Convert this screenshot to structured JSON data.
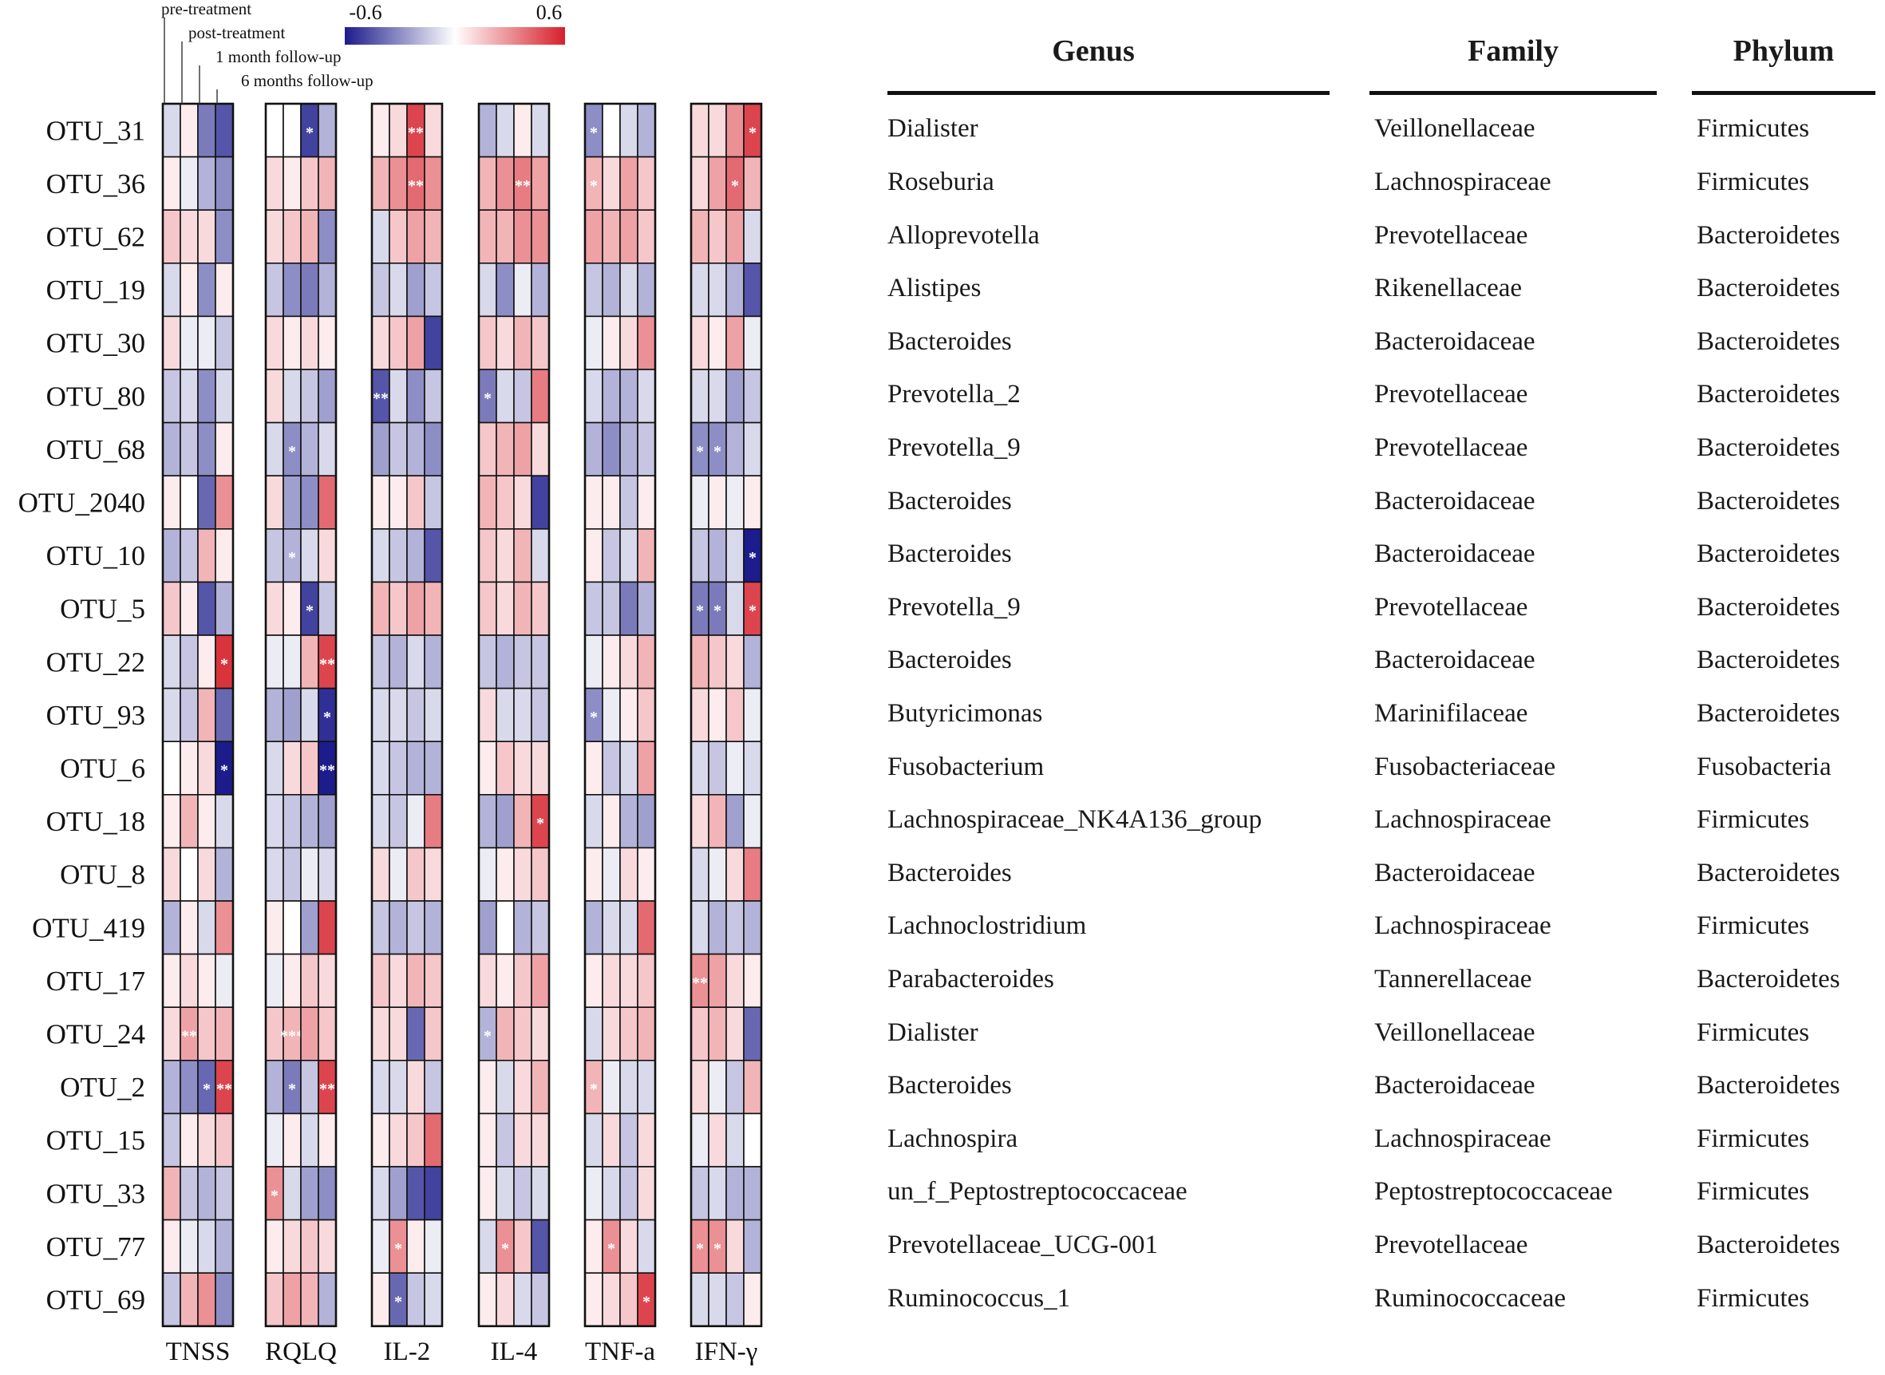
{
  "chart_data": {
    "type": "heatmap",
    "legend": {
      "min_label": "-0.6",
      "max_label": "0.6",
      "vmin": -0.6,
      "vmax": 0.6,
      "colors": {
        "low": "#1c1c8c",
        "mid": "#ffffff",
        "high": "#d6202a"
      }
    },
    "timepoint_labels": [
      "pre-treatment",
      "post-treatment",
      "1 month follow-up",
      "6 months follow-up"
    ],
    "groups": [
      "TNSS",
      "RQLQ",
      "IL-2",
      "IL-4",
      "TNF-a",
      "IFN-γ"
    ],
    "rows": [
      "OTU_31",
      "OTU_36",
      "OTU_62",
      "OTU_19",
      "OTU_30",
      "OTU_80",
      "OTU_68",
      "OTU_2040",
      "OTU_10",
      "OTU_5",
      "OTU_22",
      "OTU_93",
      "OTU_6",
      "OTU_18",
      "OTU_8",
      "OTU_419",
      "OTU_17",
      "OTU_24",
      "OTU_2",
      "OTU_15",
      "OTU_33",
      "OTU_77",
      "OTU_69"
    ],
    "values": [
      [
        -0.1,
        0.05,
        -0.35,
        -0.45,
        0.0,
        0.0,
        -0.5,
        -0.2,
        0.05,
        0.1,
        0.5,
        0.1,
        -0.2,
        -0.1,
        0.05,
        -0.1,
        -0.3,
        0.0,
        -0.1,
        -0.2,
        0.1,
        0.1,
        0.3,
        0.5
      ],
      [
        0.05,
        -0.05,
        -0.2,
        -0.3,
        0.1,
        0.05,
        0.15,
        0.2,
        0.2,
        0.3,
        0.4,
        0.3,
        0.2,
        0.3,
        0.35,
        0.25,
        0.2,
        0.1,
        0.25,
        0.15,
        0.1,
        0.25,
        0.4,
        0.2
      ],
      [
        0.15,
        0.1,
        0.1,
        -0.3,
        0.1,
        0.15,
        0.2,
        -0.3,
        -0.1,
        0.15,
        0.25,
        0.2,
        0.2,
        0.2,
        0.3,
        0.3,
        0.25,
        0.2,
        0.25,
        0.15,
        0.2,
        0.15,
        0.25,
        -0.1
      ],
      [
        -0.1,
        0.05,
        -0.3,
        0.05,
        -0.15,
        -0.3,
        -0.35,
        -0.2,
        -0.15,
        -0.1,
        -0.25,
        -0.15,
        -0.1,
        -0.3,
        -0.05,
        -0.2,
        -0.15,
        -0.2,
        -0.1,
        -0.2,
        -0.1,
        -0.1,
        -0.2,
        -0.45
      ],
      [
        0.1,
        -0.05,
        -0.05,
        -0.15,
        0.1,
        0.05,
        0.1,
        0.05,
        0.1,
        0.15,
        0.25,
        -0.5,
        0.15,
        0.1,
        0.2,
        0.15,
        -0.05,
        0.05,
        0.1,
        0.3,
        0.1,
        0.05,
        0.25,
        -0.05
      ],
      [
        -0.15,
        -0.1,
        -0.3,
        -0.1,
        0.1,
        -0.1,
        -0.15,
        -0.25,
        -0.45,
        -0.1,
        -0.3,
        -0.15,
        -0.35,
        -0.1,
        -0.15,
        0.35,
        -0.1,
        -0.2,
        -0.2,
        -0.1,
        -0.1,
        -0.1,
        -0.25,
        -0.15
      ],
      [
        -0.2,
        -0.15,
        -0.3,
        0.05,
        -0.1,
        -0.3,
        -0.2,
        -0.1,
        -0.25,
        -0.15,
        -0.2,
        -0.3,
        0.15,
        0.2,
        0.25,
        0.1,
        -0.2,
        -0.3,
        -0.2,
        -0.15,
        -0.3,
        -0.3,
        -0.2,
        -0.1
      ],
      [
        0.05,
        0.0,
        -0.4,
        0.3,
        0.1,
        -0.25,
        -0.3,
        0.4,
        0.05,
        0.05,
        0.15,
        -0.15,
        0.2,
        0.15,
        0.1,
        -0.5,
        0.05,
        0.05,
        -0.15,
        0.05,
        -0.05,
        0.05,
        -0.05,
        0.05
      ],
      [
        -0.2,
        -0.15,
        0.2,
        0.05,
        -0.15,
        -0.2,
        -0.1,
        0.1,
        -0.1,
        -0.15,
        -0.2,
        -0.45,
        0.15,
        0.1,
        0.2,
        -0.1,
        0.05,
        -0.15,
        -0.1,
        0.2,
        -0.15,
        -0.2,
        -0.1,
        -0.6
      ],
      [
        0.15,
        0.05,
        -0.45,
        -0.2,
        0.1,
        0.05,
        -0.5,
        -0.15,
        0.2,
        0.15,
        0.25,
        0.2,
        0.15,
        0.1,
        0.2,
        0.15,
        -0.15,
        -0.15,
        -0.35,
        -0.2,
        -0.35,
        -0.35,
        -0.1,
        0.5
      ],
      [
        -0.1,
        -0.15,
        0.05,
        0.55,
        -0.05,
        -0.05,
        0.2,
        0.5,
        -0.15,
        -0.2,
        -0.1,
        -0.2,
        -0.15,
        -0.2,
        -0.15,
        -0.15,
        -0.05,
        0.05,
        0.1,
        0.2,
        0.2,
        0.15,
        0.1,
        -0.2
      ],
      [
        -0.1,
        -0.15,
        0.2,
        -0.4,
        -0.2,
        -0.25,
        -0.1,
        -0.55,
        -0.1,
        -0.1,
        -0.15,
        -0.1,
        0.1,
        -0.1,
        -0.1,
        -0.15,
        -0.3,
        -0.05,
        0.05,
        0.15,
        0.1,
        0.05,
        0.15,
        -0.05
      ],
      [
        0.0,
        0.05,
        0.1,
        -0.6,
        -0.1,
        0.1,
        0.15,
        -0.6,
        -0.1,
        -0.15,
        -0.2,
        -0.2,
        0.05,
        0.15,
        0.1,
        0.1,
        0.05,
        -0.15,
        -0.1,
        0.25,
        -0.1,
        -0.15,
        -0.05,
        -0.1
      ],
      [
        0.05,
        0.2,
        0.05,
        -0.1,
        -0.1,
        -0.15,
        -0.2,
        -0.25,
        -0.1,
        -0.15,
        -0.05,
        0.35,
        -0.2,
        -0.25,
        0.2,
        0.5,
        -0.1,
        0.05,
        -0.2,
        -0.25,
        0.1,
        0.2,
        -0.25,
        -0.05
      ],
      [
        0.1,
        0.0,
        0.1,
        -0.2,
        -0.1,
        -0.15,
        -0.05,
        -0.1,
        0.1,
        -0.05,
        0.15,
        0.1,
        -0.05,
        0.05,
        0.1,
        0.15,
        0.05,
        -0.05,
        0.1,
        0.05,
        -0.1,
        -0.05,
        0.1,
        0.35
      ],
      [
        -0.2,
        0.05,
        -0.1,
        0.3,
        0.05,
        0.0,
        -0.25,
        0.5,
        -0.15,
        -0.2,
        -0.15,
        -0.2,
        -0.25,
        0.0,
        -0.2,
        -0.15,
        -0.2,
        -0.1,
        -0.1,
        0.4,
        -0.1,
        -0.2,
        -0.15,
        -0.2
      ],
      [
        0.05,
        0.1,
        0.05,
        -0.05,
        -0.05,
        0.05,
        0.15,
        0.1,
        0.15,
        0.1,
        0.2,
        0.15,
        0.1,
        0.05,
        0.15,
        0.25,
        0.05,
        0.1,
        0.1,
        0.15,
        0.3,
        0.25,
        0.1,
        0.05
      ],
      [
        0.1,
        0.25,
        0.15,
        0.2,
        0.15,
        0.2,
        0.25,
        0.15,
        0.1,
        0.1,
        -0.4,
        0.15,
        -0.2,
        0.2,
        0.15,
        0.1,
        -0.1,
        0.1,
        0.15,
        0.2,
        0.15,
        0.2,
        0.1,
        -0.4
      ],
      [
        -0.2,
        -0.3,
        -0.4,
        0.5,
        -0.2,
        -0.35,
        -0.15,
        0.5,
        -0.1,
        -0.1,
        0.1,
        -0.15,
        0.05,
        -0.1,
        0.1,
        0.2,
        0.2,
        -0.05,
        -0.1,
        -0.1,
        0.1,
        -0.05,
        -0.15,
        0.2
      ],
      [
        -0.15,
        0.05,
        0.1,
        0.15,
        -0.05,
        0.05,
        -0.1,
        0.05,
        0.05,
        0.1,
        0.15,
        0.4,
        0.05,
        -0.15,
        0.1,
        0.1,
        -0.1,
        0.1,
        -0.15,
        0.1,
        -0.05,
        0.1,
        -0.1,
        0.0
      ],
      [
        0.2,
        -0.15,
        -0.2,
        -0.15,
        0.3,
        -0.1,
        -0.25,
        -0.3,
        -0.1,
        -0.25,
        -0.45,
        -0.5,
        0.05,
        -0.1,
        -0.15,
        -0.1,
        -0.05,
        -0.1,
        -0.15,
        0.1,
        -0.15,
        -0.1,
        -0.2,
        -0.2
      ],
      [
        0.05,
        -0.05,
        -0.1,
        -0.2,
        0.05,
        0.1,
        0.15,
        0.1,
        -0.05,
        0.3,
        0.05,
        -0.05,
        -0.1,
        0.3,
        0.15,
        -0.45,
        0.05,
        0.3,
        0.1,
        -0.1,
        0.3,
        0.3,
        0.1,
        -0.2
      ],
      [
        -0.15,
        0.2,
        0.3,
        -0.3,
        0.15,
        0.25,
        0.2,
        -0.2,
        0.05,
        -0.4,
        -0.15,
        -0.1,
        0.05,
        0.1,
        -0.1,
        -0.15,
        0.05,
        0.1,
        0.15,
        0.5,
        -0.1,
        -0.1,
        -0.15,
        0.05
      ]
    ],
    "significance": [
      [
        "",
        "",
        "",
        "",
        "",
        "",
        "*",
        "",
        "",
        "",
        "**",
        "",
        "",
        "",
        "",
        "",
        "*",
        "",
        "",
        "",
        "",
        "",
        "",
        "*"
      ],
      [
        "",
        "",
        "",
        "",
        "",
        "",
        "",
        "",
        "",
        "",
        "**",
        "",
        "",
        "",
        "**",
        "",
        "*",
        "",
        "",
        "",
        "",
        "",
        "*",
        ""
      ],
      [
        "",
        "",
        "",
        "",
        "",
        "",
        "",
        "",
        "",
        "",
        "",
        "",
        "",
        "",
        "",
        "",
        "",
        "",
        "",
        "",
        "",
        "",
        "",
        ""
      ],
      [
        "",
        "",
        "",
        "",
        "",
        "",
        "",
        "",
        "",
        "",
        "",
        "",
        "",
        "",
        "",
        "",
        "",
        "",
        "",
        "",
        "",
        "",
        "",
        ""
      ],
      [
        "",
        "",
        "",
        "",
        "",
        "",
        "",
        "",
        "",
        "",
        "",
        "",
        "",
        "",
        "",
        "",
        "",
        "",
        "",
        "",
        "",
        "",
        "",
        ""
      ],
      [
        "",
        "",
        "",
        "",
        "",
        "",
        "",
        "",
        "**",
        "",
        "",
        "",
        "*",
        "",
        "",
        "",
        "",
        "",
        "",
        "",
        "",
        "",
        "",
        ""
      ],
      [
        "",
        "",
        "",
        "",
        "",
        "*",
        "",
        "",
        "",
        "",
        "",
        "",
        "",
        "",
        "",
        "",
        "",
        "",
        "",
        "",
        "*",
        "*",
        "",
        ""
      ],
      [
        "",
        "",
        "",
        "",
        "",
        "",
        "",
        "",
        "",
        "",
        "",
        "",
        "",
        "",
        "",
        "",
        "",
        "",
        "",
        "",
        "",
        "",
        "",
        ""
      ],
      [
        "",
        "",
        "",
        "",
        "",
        "*",
        "",
        "",
        "",
        "",
        "",
        "",
        "",
        "",
        "",
        "",
        "",
        "",
        "",
        "",
        "",
        "",
        "",
        "*"
      ],
      [
        "",
        "",
        "",
        "",
        "",
        "",
        "*",
        "",
        "",
        "",
        "",
        "",
        "",
        "",
        "",
        "",
        "",
        "",
        "",
        "",
        "*",
        "*",
        "",
        "*"
      ],
      [
        "",
        "",
        "",
        "*",
        "",
        "",
        "",
        "**",
        "",
        "",
        "",
        "",
        "",
        "",
        "",
        "",
        "",
        "",
        "",
        "",
        "",
        "",
        "",
        ""
      ],
      [
        "",
        "",
        "",
        "",
        "",
        "",
        "",
        "*",
        "",
        "",
        "",
        "",
        "",
        "",
        "",
        "",
        "*",
        "",
        "",
        "",
        "",
        "",
        "",
        ""
      ],
      [
        "",
        "",
        "",
        "*",
        "",
        "",
        "",
        "**",
        "",
        "",
        "",
        "",
        "",
        "",
        "",
        "",
        "",
        "",
        "",
        "",
        "",
        "",
        "",
        ""
      ],
      [
        "",
        "",
        "",
        "",
        "",
        "",
        "",
        "",
        "",
        "",
        "",
        "",
        "",
        "",
        "",
        "*",
        "",
        "",
        "",
        "",
        "",
        "",
        "",
        ""
      ],
      [
        "",
        "",
        "",
        "",
        "",
        "",
        "",
        "",
        "",
        "",
        "",
        "",
        "",
        "",
        "",
        "",
        "",
        "",
        "",
        "",
        "",
        "",
        "",
        ""
      ],
      [
        "",
        "",
        "",
        "",
        "",
        "",
        "",
        "",
        "",
        "",
        "",
        "",
        "",
        "",
        "",
        "",
        "",
        "",
        "",
        "",
        "",
        "",
        "",
        ""
      ],
      [
        "",
        "",
        "",
        "",
        "",
        "",
        "",
        "",
        "",
        "",
        "",
        "",
        "",
        "",
        "",
        "",
        "",
        "",
        "",
        "",
        "**",
        "",
        "",
        ""
      ],
      [
        "",
        "**",
        "",
        "",
        "",
        "***",
        "",
        "",
        "",
        "",
        "",
        "",
        "*",
        "",
        "",
        "",
        "",
        "",
        "",
        "",
        "",
        "",
        "",
        ""
      ],
      [
        "",
        "",
        "*",
        "**",
        "",
        "*",
        "",
        "**",
        "",
        "",
        "",
        "",
        "",
        "",
        "",
        "",
        "*",
        "",
        "",
        "",
        "",
        "",
        "",
        ""
      ],
      [
        "",
        "",
        "",
        "",
        "",
        "",
        "",
        "",
        "",
        "",
        "",
        "",
        "",
        "",
        "",
        "",
        "",
        "",
        "",
        "",
        "",
        "",
        "",
        ""
      ],
      [
        "",
        "",
        "",
        "",
        "*",
        "",
        "",
        "",
        "",
        "",
        "",
        "",
        "",
        "",
        "",
        "",
        "",
        "",
        "",
        "",
        "",
        "",
        "",
        ""
      ],
      [
        "",
        "",
        "",
        "",
        "",
        "",
        "",
        "",
        "",
        "*",
        "",
        "",
        "",
        "*",
        "",
        "",
        "",
        "*",
        "",
        "",
        "*",
        "*",
        "",
        ""
      ],
      [
        "",
        "",
        "",
        "",
        "",
        "",
        "",
        "",
        "",
        "*",
        "",
        "",
        "",
        "",
        "",
        "",
        "",
        "",
        "",
        "*",
        "",
        "",
        "",
        ""
      ]
    ]
  },
  "table": {
    "headers": [
      "Genus",
      "Family",
      "Phylum"
    ],
    "rows": [
      [
        "Dialister",
        "Veillonellaceae",
        "Firmicutes"
      ],
      [
        "Roseburia",
        "Lachnospiraceae",
        "Firmicutes"
      ],
      [
        "Alloprevotella",
        "Prevotellaceae",
        "Bacteroidetes"
      ],
      [
        "Alistipes",
        "Rikenellaceae",
        "Bacteroidetes"
      ],
      [
        "Bacteroides",
        "Bacteroidaceae",
        "Bacteroidetes"
      ],
      [
        "Prevotella_2",
        "Prevotellaceae",
        "Bacteroidetes"
      ],
      [
        "Prevotella_9",
        "Prevotellaceae",
        "Bacteroidetes"
      ],
      [
        "Bacteroides",
        "Bacteroidaceae",
        "Bacteroidetes"
      ],
      [
        "Bacteroides",
        "Bacteroidaceae",
        "Bacteroidetes"
      ],
      [
        "Prevotella_9",
        "Prevotellaceae",
        "Bacteroidetes"
      ],
      [
        "Bacteroides",
        "Bacteroidaceae",
        "Bacteroidetes"
      ],
      [
        "Butyricimonas",
        "Marinifilaceae",
        "Bacteroidetes"
      ],
      [
        "Fusobacterium",
        "Fusobacteriaceae",
        "Fusobacteria"
      ],
      [
        "Lachnospiraceae_NK4A136_group",
        "Lachnospiraceae",
        "Firmicutes"
      ],
      [
        "Bacteroides",
        "Bacteroidaceae",
        "Bacteroidetes"
      ],
      [
        "Lachnoclostridium",
        "Lachnospiraceae",
        "Firmicutes"
      ],
      [
        "Parabacteroides",
        "Tannerellaceae",
        "Bacteroidetes"
      ],
      [
        "Dialister",
        "Veillonellaceae",
        "Firmicutes"
      ],
      [
        "Bacteroides",
        "Bacteroidaceae",
        "Bacteroidetes"
      ],
      [
        "Lachnospira",
        "Lachnospiraceae",
        "Firmicutes"
      ],
      [
        "un_f_Peptostreptococcaceae",
        "Peptostreptococcaceae",
        "Firmicutes"
      ],
      [
        "Prevotellaceae_UCG-001",
        "Prevotellaceae",
        "Bacteroidetes"
      ],
      [
        "Ruminococcus_1",
        "Ruminococcaceae",
        "Firmicutes"
      ]
    ]
  }
}
